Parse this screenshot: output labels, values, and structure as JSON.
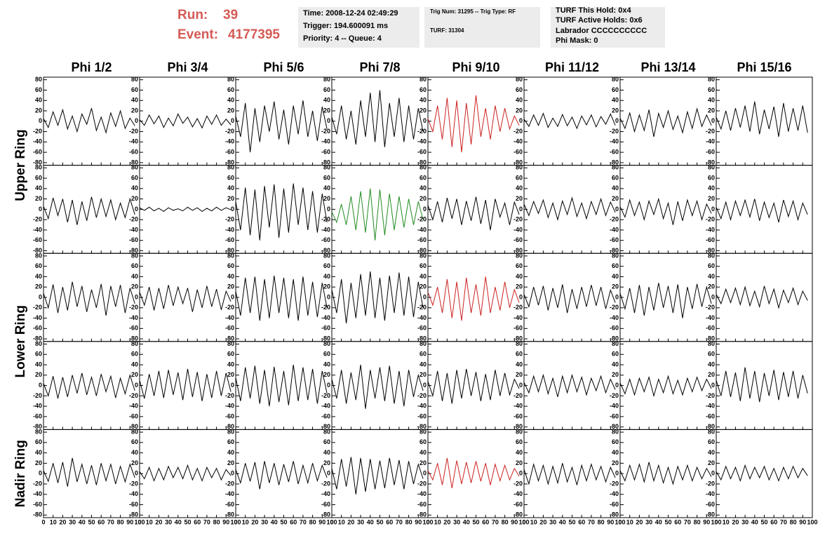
{
  "header": {
    "run_label": "Run:",
    "run": "39",
    "event_label": "Event:",
    "event": "4177395",
    "info1": [
      "Time: 2008-12-24 02:49:29",
      "Trigger: 194.600091 ms",
      "Priority: 4 -- Queue: 4"
    ],
    "info2": [
      "Trig Num: 31295 -- Trig Type: RF",
      "TURF: 31304"
    ],
    "info3": [
      "TURF This Hold: 0x4",
      "TURF Active Holds: 0x6",
      "Labrador CCCCCCCCCC",
      "Phi Mask: 0"
    ]
  },
  "chart_data": {
    "type": "line",
    "columns": [
      "Phi 1/2",
      "Phi 3/4",
      "Phi 5/6",
      "Phi 7/8",
      "Phi 9/10",
      "Phi 11/12",
      "Phi 13/14",
      "Phi 15/16"
    ],
    "rings": [
      "Upper Ring",
      "Lower Ring",
      "Nadir Ring"
    ],
    "xlim": [
      0,
      100
    ],
    "ylim": [
      -85,
      85
    ],
    "xticks": [
      0,
      10,
      20,
      30,
      40,
      50,
      60,
      70,
      80,
      90,
      100
    ],
    "yticks": [
      -80,
      -60,
      -40,
      -20,
      0,
      20,
      40,
      60,
      80
    ],
    "x": [
      0,
      5,
      10,
      15,
      20,
      25,
      30,
      35,
      40,
      45,
      50,
      55,
      60,
      65,
      70,
      75,
      80,
      85,
      90,
      95
    ],
    "panels": [
      [
        {
          "color": "#000000",
          "values": [
            5,
            -12,
            18,
            -8,
            22,
            -15,
            10,
            -20,
            14,
            -6,
            25,
            -18,
            8,
            -22,
            16,
            -10,
            20,
            -14,
            6,
            -9
          ]
        },
        {
          "color": "#000000",
          "values": [
            3,
            -8,
            12,
            -5,
            10,
            -12,
            6,
            -9,
            14,
            -4,
            8,
            -11,
            5,
            -13,
            10,
            -6,
            12,
            -8,
            4,
            -7
          ]
        },
        {
          "color": "#000000",
          "values": [
            10,
            -30,
            35,
            -60,
            25,
            -40,
            30,
            -20,
            38,
            -35,
            22,
            -45,
            30,
            -25,
            40,
            -30,
            20,
            -38,
            28,
            -15
          ]
        },
        {
          "color": "#000000",
          "values": [
            8,
            -25,
            30,
            -35,
            20,
            -45,
            40,
            -30,
            55,
            -40,
            60,
            -50,
            35,
            -30,
            45,
            -40,
            30,
            -35,
            25,
            -20
          ]
        },
        {
          "color": "#cc2222",
          "values": [
            5,
            -20,
            30,
            -35,
            45,
            -50,
            40,
            -60,
            35,
            -45,
            50,
            -30,
            25,
            -35,
            30,
            -20,
            25,
            -15,
            10,
            -8
          ]
        },
        {
          "color": "#000000",
          "values": [
            4,
            -10,
            12,
            -8,
            15,
            -12,
            6,
            -10,
            13,
            -9,
            8,
            -14,
            10,
            -7,
            12,
            -11,
            9,
            -6,
            14,
            -8
          ]
        },
        {
          "color": "#000000",
          "values": [
            6,
            -14,
            16,
            -20,
            12,
            -18,
            22,
            -30,
            15,
            -12,
            20,
            -16,
            10,
            -22,
            18,
            -14,
            24,
            -10,
            12,
            -8
          ]
        },
        {
          "color": "#000000",
          "values": [
            8,
            -15,
            20,
            -18,
            25,
            -12,
            30,
            -20,
            38,
            -25,
            22,
            -15,
            28,
            -30,
            35,
            -20,
            25,
            -18,
            30,
            -22
          ]
        }
      ],
      [
        {
          "color": "#000000",
          "values": [
            6,
            -18,
            22,
            -12,
            20,
            -25,
            18,
            -30,
            15,
            -22,
            24,
            -16,
            20,
            -14,
            18,
            -20,
            12,
            -16,
            20,
            -10
          ]
        },
        {
          "color": "#000000",
          "values": [
            3,
            -2,
            4,
            -3,
            2,
            -4,
            3,
            -2,
            1,
            -3,
            4,
            -2,
            3,
            -4,
            2,
            -3,
            4,
            -2,
            3,
            -1
          ]
        },
        {
          "color": "#000000",
          "values": [
            15,
            -40,
            42,
            -50,
            38,
            -60,
            45,
            -35,
            48,
            -55,
            40,
            -45,
            50,
            -30,
            42,
            -40,
            35,
            -45,
            30,
            -25
          ]
        },
        {
          "color": "#228b22",
          "values": [
            -5,
            -25,
            10,
            -30,
            25,
            -40,
            35,
            -45,
            40,
            -60,
            38,
            -50,
            30,
            -40,
            25,
            -35,
            20,
            -30,
            15,
            -20
          ]
        },
        {
          "color": "#000000",
          "values": [
            8,
            -20,
            15,
            -25,
            22,
            -18,
            20,
            -30,
            16,
            -22,
            24,
            -28,
            18,
            -40,
            20,
            -15,
            12,
            -30,
            14,
            -10
          ]
        },
        {
          "color": "#000000",
          "values": [
            10,
            -12,
            15,
            -8,
            18,
            -16,
            12,
            -20,
            16,
            -10,
            22,
            -14,
            12,
            -18,
            15,
            -10,
            20,
            -12,
            14,
            -6
          ]
        },
        {
          "color": "#000000",
          "values": [
            5,
            -15,
            18,
            -12,
            14,
            -20,
            16,
            -10,
            20,
            -18,
            12,
            -30,
            15,
            -22,
            18,
            -12,
            16,
            -20,
            10,
            -8
          ]
        },
        {
          "color": "#000000",
          "values": [
            4,
            -18,
            14,
            -20,
            16,
            -12,
            18,
            -15,
            20,
            -22,
            14,
            -16,
            12,
            -25,
            18,
            -14,
            16,
            -20,
            12,
            -10
          ]
        }
      ],
      [
        {
          "color": "#000000",
          "values": [
            8,
            -20,
            25,
            -30,
            20,
            -25,
            30,
            -18,
            22,
            -28,
            15,
            -20,
            26,
            -35,
            22,
            -18,
            24,
            -30,
            18,
            -12
          ]
        },
        {
          "color": "#000000",
          "values": [
            10,
            -15,
            20,
            -25,
            18,
            -22,
            24,
            -16,
            20,
            -12,
            18,
            -28,
            15,
            -20,
            22,
            -18,
            16,
            -24,
            12,
            -8
          ]
        },
        {
          "color": "#000000",
          "values": [
            12,
            -35,
            38,
            -30,
            40,
            -45,
            35,
            -40,
            42,
            -30,
            38,
            -40,
            35,
            -45,
            40,
            -35,
            30,
            -38,
            28,
            -20
          ]
        },
        {
          "color": "#000000",
          "values": [
            15,
            -30,
            35,
            -50,
            28,
            -40,
            45,
            -35,
            50,
            -40,
            38,
            -45,
            42,
            -30,
            48,
            -35,
            40,
            -38,
            30,
            -20
          ]
        },
        {
          "color": "#cc2222",
          "values": [
            10,
            -15,
            20,
            -30,
            35,
            -40,
            30,
            -45,
            38,
            -30,
            25,
            -35,
            40,
            -30,
            20,
            -25,
            30,
            -20,
            15,
            -10
          ]
        },
        {
          "color": "#000000",
          "values": [
            6,
            -18,
            20,
            -15,
            22,
            -25,
            18,
            -20,
            25,
            -30,
            16,
            -22,
            20,
            -18,
            24,
            -16,
            20,
            -22,
            14,
            -10
          ]
        },
        {
          "color": "#000000",
          "values": [
            8,
            -22,
            18,
            -30,
            24,
            -35,
            20,
            -25,
            28,
            -20,
            22,
            -30,
            25,
            -40,
            20,
            -22,
            26,
            -18,
            20,
            -12
          ]
        },
        {
          "color": "#000000",
          "values": [
            6,
            -12,
            16,
            -10,
            18,
            -14,
            20,
            -16,
            12,
            -18,
            22,
            -12,
            16,
            -20,
            14,
            -10,
            18,
            -14,
            12,
            -6
          ]
        }
      ],
      [
        {
          "color": "#000000",
          "values": [
            4,
            -20,
            18,
            -25,
            16,
            -22,
            20,
            -15,
            24,
            -18,
            16,
            -20,
            22,
            -12,
            18,
            -24,
            14,
            -16,
            20,
            -10
          ]
        },
        {
          "color": "#000000",
          "values": [
            10,
            -25,
            22,
            -20,
            28,
            -24,
            30,
            -18,
            25,
            -28,
            32,
            -22,
            26,
            -30,
            22,
            -24,
            28,
            -20,
            24,
            -12
          ]
        },
        {
          "color": "#000000",
          "values": [
            15,
            -30,
            35,
            -25,
            38,
            -35,
            30,
            -40,
            36,
            -32,
            28,
            -38,
            40,
            -30,
            35,
            -28,
            32,
            -35,
            28,
            -15
          ]
        },
        {
          "color": "#000000",
          "values": [
            12,
            -25,
            30,
            -35,
            25,
            -28,
            40,
            -45,
            30,
            -25,
            35,
            -30,
            38,
            -35,
            28,
            -40,
            30,
            -22,
            20,
            -10
          ]
        },
        {
          "color": "#000000",
          "values": [
            8,
            -20,
            28,
            -30,
            24,
            -35,
            30,
            -25,
            32,
            -20,
            26,
            -30,
            22,
            -28,
            30,
            -20,
            24,
            -18,
            12,
            -6
          ]
        },
        {
          "color": "#000000",
          "values": [
            6,
            -14,
            18,
            -12,
            20,
            -16,
            14,
            -22,
            18,
            -14,
            20,
            -12,
            16,
            -18,
            14,
            -10,
            18,
            -14,
            12,
            -8
          ]
        },
        {
          "color": "#000000",
          "values": [
            5,
            -16,
            12,
            -18,
            14,
            -12,
            16,
            -20,
            12,
            -14,
            18,
            -16,
            10,
            -18,
            14,
            -12,
            16,
            -10,
            12,
            -6
          ]
        },
        {
          "color": "#000000",
          "values": [
            10,
            -20,
            28,
            -22,
            25,
            -30,
            35,
            -25,
            28,
            -32,
            24,
            -20,
            30,
            -28,
            26,
            -22,
            28,
            -25,
            20,
            -15
          ]
        }
      ],
      [
        {
          "color": "#000000",
          "values": [
            6,
            -15,
            20,
            -18,
            22,
            -25,
            30,
            -16,
            18,
            -20,
            16,
            -22,
            20,
            -14,
            18,
            -20,
            14,
            -16,
            18,
            -8
          ]
        },
        {
          "color": "#000000",
          "values": [
            4,
            -10,
            12,
            -14,
            10,
            -12,
            14,
            -8,
            12,
            -10,
            16,
            -12,
            10,
            -14,
            12,
            -8,
            10,
            -12,
            8,
            -4
          ]
        },
        {
          "color": "#000000",
          "values": [
            8,
            -18,
            20,
            -15,
            22,
            -30,
            24,
            -18,
            20,
            -22,
            18,
            -16,
            24,
            -20,
            16,
            -18,
            20,
            -14,
            16,
            -8
          ]
        },
        {
          "color": "#000000",
          "values": [
            10,
            -30,
            28,
            -25,
            32,
            -40,
            30,
            -35,
            28,
            -30,
            25,
            -28,
            30,
            -22,
            26,
            -30,
            24,
            -20,
            18,
            -10
          ]
        },
        {
          "color": "#cc2222",
          "values": [
            6,
            -12,
            20,
            -22,
            30,
            -28,
            25,
            -20,
            22,
            -18,
            24,
            -15,
            20,
            -22,
            18,
            -14,
            16,
            -12,
            10,
            -5
          ]
        },
        {
          "color": "#000000",
          "values": [
            8,
            -20,
            18,
            -14,
            16,
            -20,
            14,
            -18,
            20,
            -16,
            12,
            -22,
            16,
            -14,
            18,
            -12,
            14,
            -16,
            12,
            -8
          ]
        },
        {
          "color": "#000000",
          "values": [
            6,
            -14,
            16,
            -12,
            18,
            -16,
            22,
            -14,
            16,
            -18,
            12,
            -20,
            14,
            -12,
            16,
            -14,
            12,
            -10,
            10,
            -6
          ]
        },
        {
          "color": "#000000",
          "values": [
            4,
            -12,
            14,
            -10,
            12,
            -14,
            16,
            -10,
            12,
            -8,
            14,
            -12,
            10,
            -14,
            12,
            -10,
            14,
            -8,
            10,
            -4
          ]
        }
      ]
    ]
  }
}
